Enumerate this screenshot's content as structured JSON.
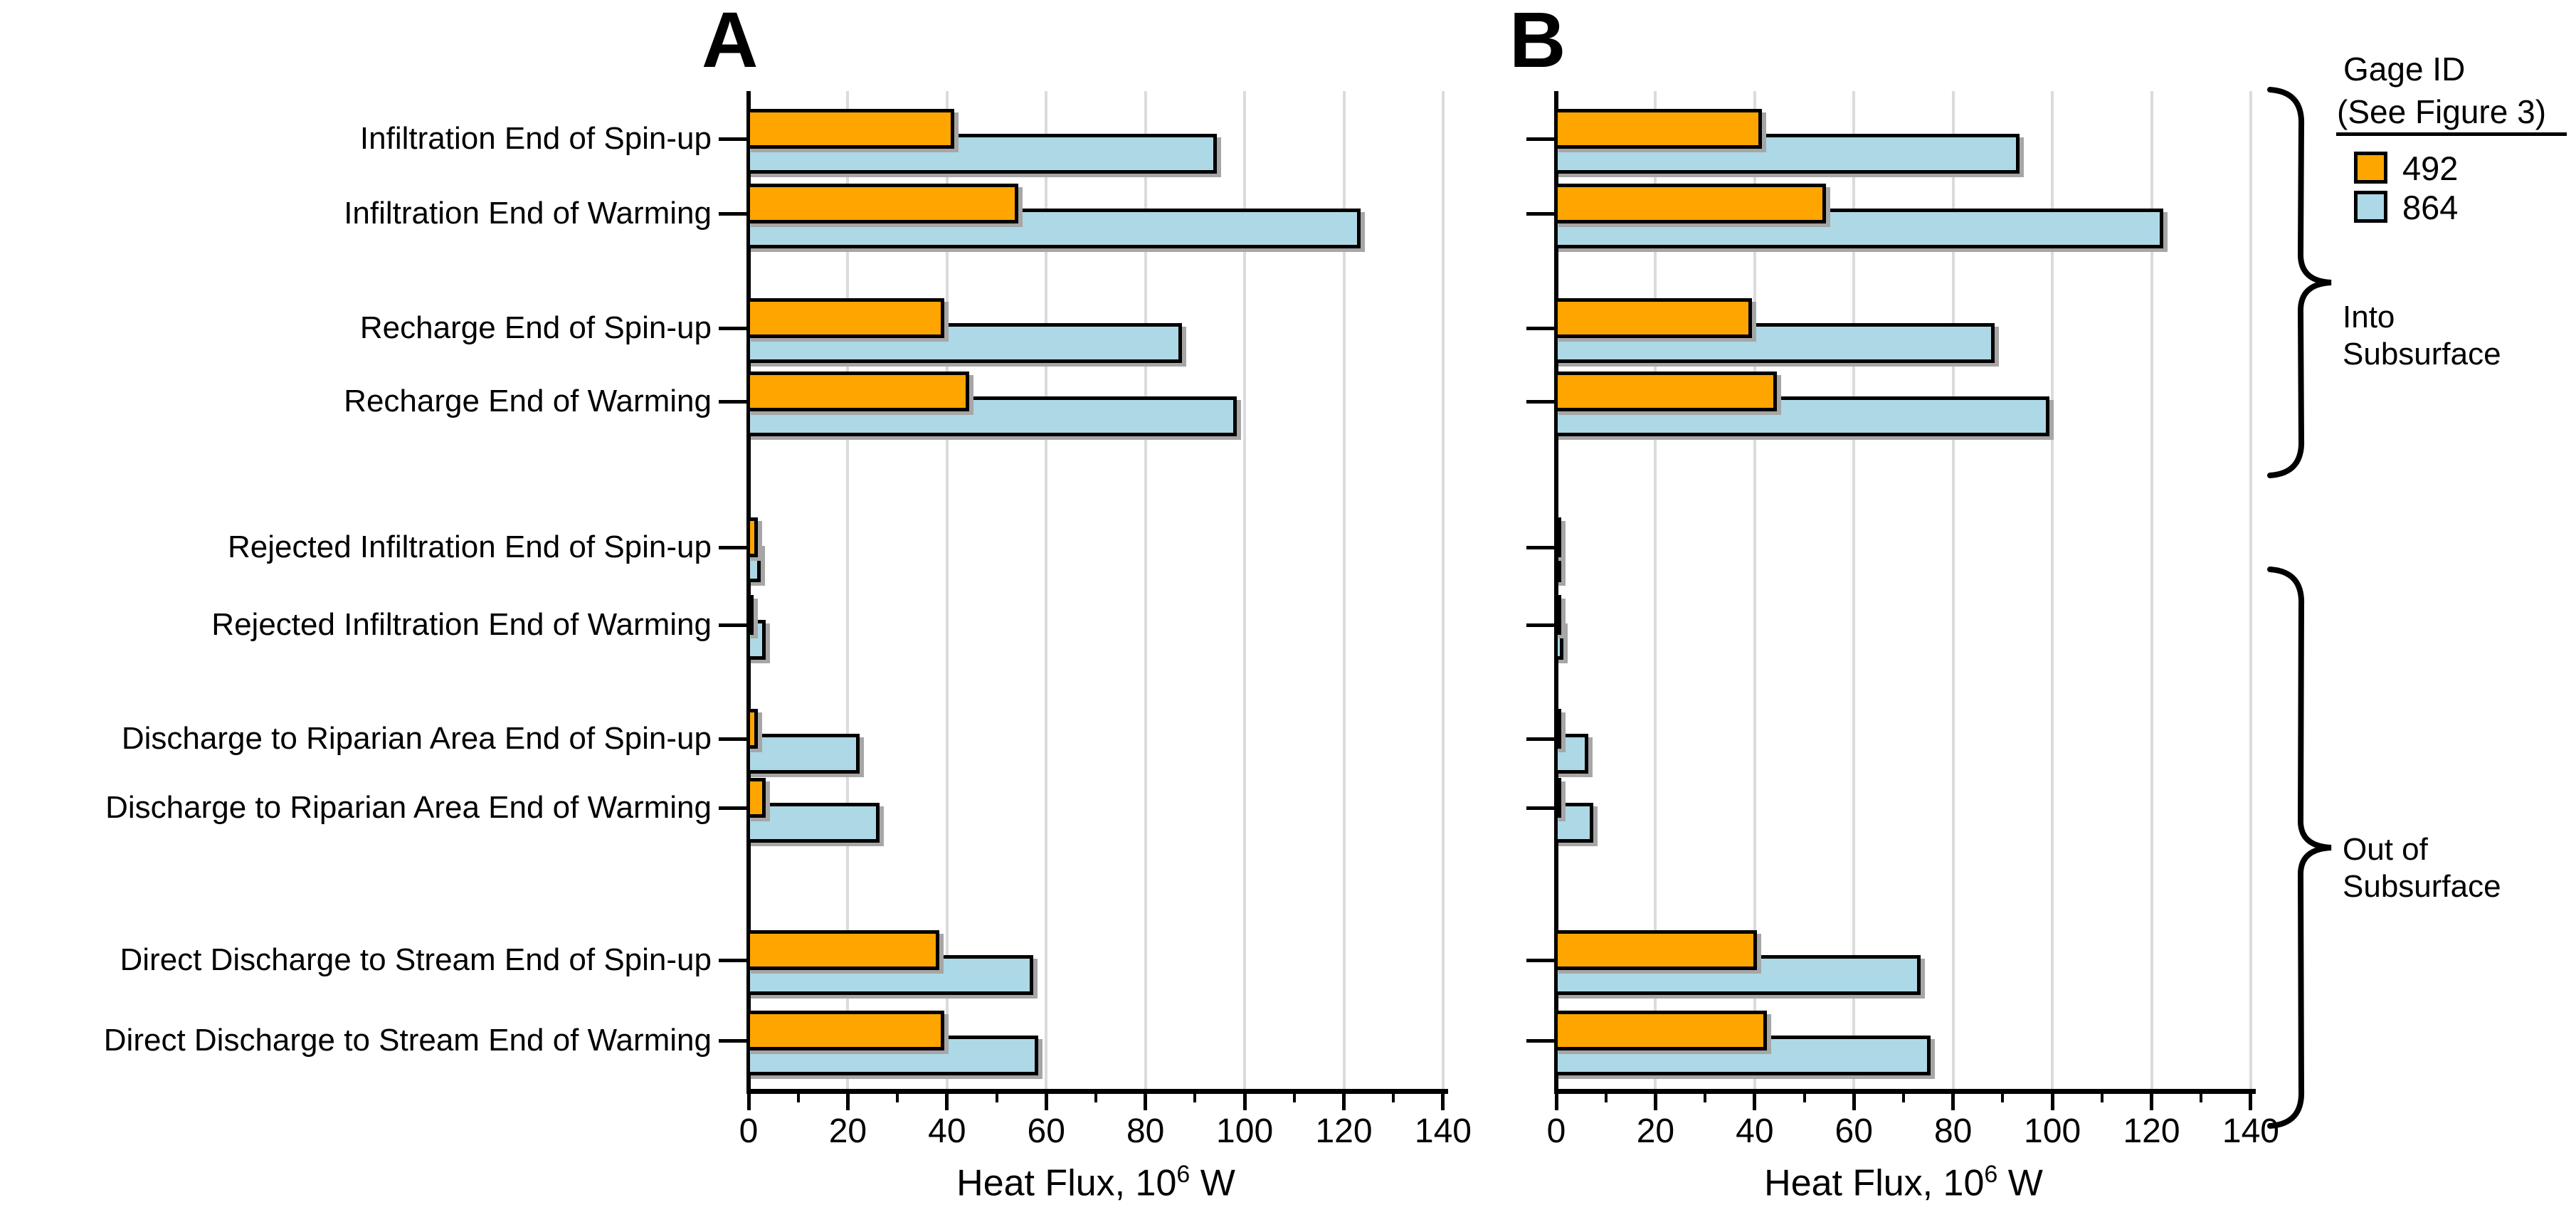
{
  "figure": {
    "panel_a_label": "A",
    "panel_b_label": "B",
    "x_axis": {
      "title_base": "Heat Flux, 10",
      "title_exponent": "6",
      "title_unit": " W",
      "min": 0,
      "max": 140,
      "major_tick_step": 20,
      "minor_tick_step": 10,
      "tick_labels": [
        "0",
        "20",
        "40",
        "60",
        "80",
        "100",
        "120",
        "140"
      ]
    },
    "categories": [
      "Infiltration End of Spin-up",
      "Infiltration End of Warming",
      "Recharge End of Spin-up",
      "Recharge End of Warming",
      "Rejected Infiltration End of Spin-up",
      "Rejected Infiltration End of Warming",
      "Discharge to Riparian Area End of Spin-up",
      "Discharge to Riparian Area End of Warming",
      "Direct Discharge to Stream End of Spin-up",
      "Direct Discharge to Stream End of Warming"
    ],
    "legend": {
      "title_line1": "Gage ID",
      "title_line2": "(See Figure 3)",
      "entries": [
        {
          "label": "492",
          "color": "#FFA500"
        },
        {
          "label": "864",
          "color": "#ADD8E6"
        }
      ]
    },
    "annotations": [
      {
        "line1": "Into",
        "line2": "Subsurface"
      },
      {
        "line1": "Out of",
        "line2": "Subsurface"
      }
    ],
    "colors": {
      "series_492": "#FFA500",
      "series_864": "#ADD8E6",
      "outline": "#000000",
      "gridline": "#DBDBDB",
      "shadow": "#A6A6A6"
    }
  },
  "chart_data": [
    {
      "type": "bar",
      "orientation": "horizontal",
      "panel": "A",
      "title": "A",
      "categories": [
        "Infiltration End of Spin-up",
        "Infiltration End of Warming",
        "Recharge End of Spin-up",
        "Recharge End of Warming",
        "Rejected Infiltration End of Spin-up",
        "Rejected Infiltration End of Warming",
        "Discharge to Riparian Area End of Spin-up",
        "Discharge to Riparian Area End of Warming",
        "Direct Discharge to Stream End of Spin-up",
        "Direct Discharge to Stream End of Warming"
      ],
      "series": [
        {
          "name": "492",
          "color": "#FFA500",
          "values": [
            41,
            54,
            39,
            44,
            1.5,
            0.5,
            1.5,
            3,
            38,
            39
          ]
        },
        {
          "name": "864",
          "color": "#ADD8E6",
          "values": [
            94,
            123,
            87,
            98,
            2,
            3,
            22,
            26,
            57,
            58
          ]
        }
      ],
      "xlabel": "Heat Flux, 10^6 W",
      "xlim": [
        0,
        140
      ],
      "xticks": [
        0,
        20,
        40,
        60,
        80,
        100,
        120,
        140
      ],
      "grid": "vertical-major",
      "legend_position": "top-right-outside",
      "group_labels": [
        {
          "label": "Into Subsurface",
          "rows": [
            0,
            3
          ]
        },
        {
          "label": "Out of Subsurface",
          "rows": [
            4,
            9
          ]
        }
      ]
    },
    {
      "type": "bar",
      "orientation": "horizontal",
      "panel": "B",
      "title": "B",
      "categories": [
        "Infiltration End of Spin-up",
        "Infiltration End of Warming",
        "Recharge End of Spin-up",
        "Recharge End of Warming",
        "Rejected Infiltration End of Spin-up",
        "Rejected Infiltration End of Warming",
        "Discharge to Riparian Area End of Spin-up",
        "Discharge to Riparian Area End of Warming",
        "Direct Discharge to Stream End of Spin-up",
        "Direct Discharge to Stream End of Warming"
      ],
      "series": [
        {
          "name": "492",
          "color": "#FFA500",
          "values": [
            41,
            54,
            39,
            44,
            0.2,
            0.3,
            0.5,
            0.5,
            40,
            42
          ]
        },
        {
          "name": "864",
          "color": "#ADD8E6",
          "values": [
            93,
            122,
            88,
            99,
            0.3,
            1,
            6,
            7,
            73,
            75
          ]
        }
      ],
      "xlabel": "Heat Flux, 10^6 W",
      "xlim": [
        0,
        140
      ],
      "xticks": [
        0,
        20,
        40,
        60,
        80,
        100,
        120,
        140
      ],
      "grid": "vertical-major",
      "group_labels": [
        {
          "label": "Into Subsurface",
          "rows": [
            0,
            3
          ]
        },
        {
          "label": "Out of Subsurface",
          "rows": [
            4,
            9
          ]
        }
      ]
    }
  ]
}
